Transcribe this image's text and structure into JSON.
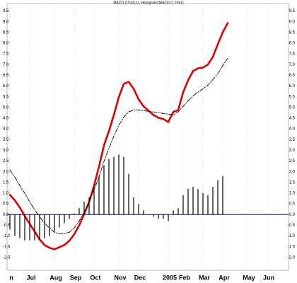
{
  "chart_data": {
    "type": "macd",
    "title": "MACD (19,40,1), Histogram=MACD (1.7591)",
    "categories": [
      "n",
      null,
      null,
      null,
      "Jul",
      null,
      null,
      null,
      null,
      "Aug",
      null,
      null,
      null,
      "Sep",
      null,
      null,
      null,
      "Oct",
      null,
      null,
      null,
      null,
      "Nov",
      null,
      null,
      null,
      "Dec",
      null,
      null,
      null,
      null,
      null,
      "2005",
      null,
      null,
      "Feb",
      null,
      null,
      null,
      "Mar",
      null,
      null,
      null,
      "Apr",
      null,
      null,
      null,
      null,
      "May",
      null,
      null,
      null,
      "Jun",
      null,
      null,
      null,
      null
    ],
    "series": [
      {
        "kind": "line",
        "color": "#e00000",
        "dashed": false,
        "values": [
          0.92,
          0.66,
          0.33,
          -0.07,
          -0.43,
          -0.79,
          -1.16,
          -1.42,
          -1.55,
          -1.62,
          -1.52,
          -1.42,
          -1.22,
          -0.92,
          -0.5,
          0.03,
          0.59,
          1.35,
          2.24,
          3.23,
          3.89,
          4.65,
          5.48,
          6.1,
          6.2,
          5.87,
          5.38,
          5.05,
          4.85,
          4.65,
          4.52,
          4.46,
          4.32,
          4.79,
          4.88,
          5.71,
          6.27,
          6.7,
          6.83,
          6.86,
          7.0,
          7.36,
          7.95,
          8.51,
          8.94,
          null,
          null,
          null,
          null,
          null,
          null,
          null,
          null,
          null,
          null,
          null,
          null
        ]
      },
      {
        "kind": "line",
        "color": "#000000",
        "dashed": true,
        "values": [
          2.08,
          1.75,
          1.35,
          0.99,
          0.59,
          0.23,
          -0.1,
          -0.4,
          -0.63,
          -0.83,
          -0.89,
          -0.89,
          -0.83,
          -0.63,
          -0.3,
          0.1,
          0.59,
          1.16,
          1.75,
          2.48,
          3.07,
          3.66,
          4.16,
          4.55,
          4.79,
          4.88,
          4.88,
          4.85,
          4.82,
          4.79,
          4.75,
          4.72,
          4.69,
          4.65,
          4.79,
          5.05,
          5.31,
          5.54,
          5.71,
          5.87,
          6.04,
          6.3,
          6.57,
          6.96,
          7.29,
          null,
          null,
          null,
          null,
          null,
          null,
          null,
          null,
          null,
          null,
          null,
          null
        ]
      },
      {
        "kind": "bar",
        "color": "#000000",
        "dashed": false,
        "values": [
          -0.7,
          -1.0,
          -1.1,
          -1.2,
          -1.2,
          -1.2,
          -1.2,
          -1.1,
          -1.0,
          -0.8,
          -0.6,
          -0.4,
          -0.2,
          0.05,
          0.3,
          0.6,
          0.8,
          1.3,
          1.8,
          2.3,
          2.6,
          2.7,
          2.8,
          2.7,
          1.9,
          0.8,
          0.5,
          0.2,
          0.0,
          -0.1,
          -0.2,
          -0.2,
          -0.3,
          0.2,
          0.3,
          0.9,
          1.2,
          1.3,
          1.2,
          1.0,
          0.9,
          1.3,
          1.6,
          1.8,
          null,
          null,
          null,
          null,
          null,
          null,
          null,
          null,
          null,
          null,
          null,
          null,
          null
        ]
      }
    ],
    "zero_line_color": "#0000c0",
    "ylim": [
      -2.6,
      9.85
    ],
    "yticks": [
      {
        "value": -2,
        "label": "-2.0"
      },
      -1.5,
      {
        "value": -1,
        "label": "-1.0"
      },
      -0.5,
      {
        "value": 0,
        "label": "0.0"
      },
      0.5,
      {
        "value": 1,
        "label": "1.0"
      },
      1.5,
      {
        "value": 2,
        "label": "2.0"
      },
      2.5,
      {
        "value": 3,
        "label": "3.0"
      },
      3.5,
      {
        "value": 4,
        "label": "4.0"
      },
      4.5,
      {
        "value": 5,
        "label": "5.0"
      },
      5.5,
      {
        "value": 6,
        "label": "6.0"
      },
      6.5,
      {
        "value": 7,
        "label": "7.0"
      },
      7.5,
      {
        "value": 8,
        "label": "8.0"
      },
      8.5,
      {
        "value": 9,
        "label": "9.0"
      },
      9.5
    ]
  }
}
